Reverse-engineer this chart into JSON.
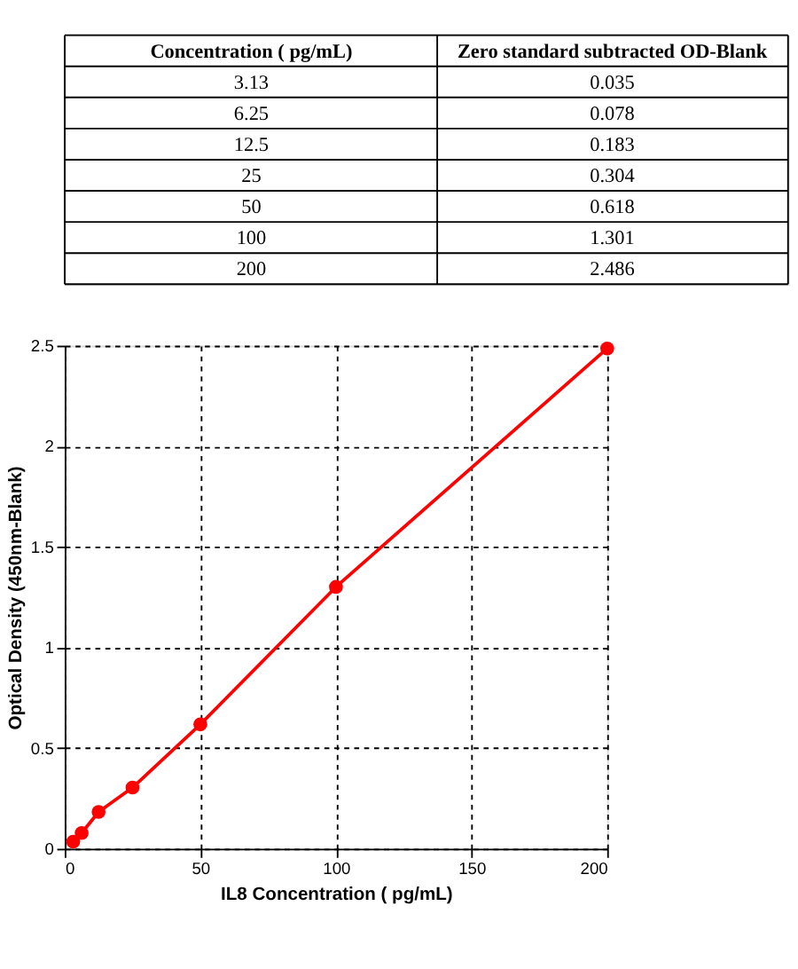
{
  "chart_data": [
    {
      "type": "other",
      "annotations": [
        "Concentration ( pg/mL)",
        "Zero standard subtracted OD-Blank",
        "3.13",
        "0.035",
        "6.25",
        "0.078",
        "12.5",
        "0.183",
        "25",
        "0.304",
        "50",
        "0.618",
        "100",
        "1.301",
        "200",
        "2.486"
      ]
    },
    {
      "type": "line",
      "x": [
        3.13,
        6.25,
        12.5,
        25,
        50,
        100,
        200
      ],
      "series": [
        {
          "color": "#ff0000",
          "values": [
            0.035,
            0.078,
            0.183,
            0.304,
            0.618,
            1.301,
            2.486
          ]
        }
      ],
      "xlabel": "IL8 Concentration  ( pg/mL)",
      "ylabel": "Optical Density (450nm-Blank)",
      "xlim": [
        0,
        200
      ],
      "xticks": [
        0,
        50,
        100,
        150,
        200
      ],
      "ylim": [
        0,
        2.5
      ],
      "yticks": [
        0,
        0.5,
        1,
        1.5,
        2,
        2.5
      ],
      "grid": true,
      "marker": "circle",
      "line_style": "solid"
    }
  ]
}
